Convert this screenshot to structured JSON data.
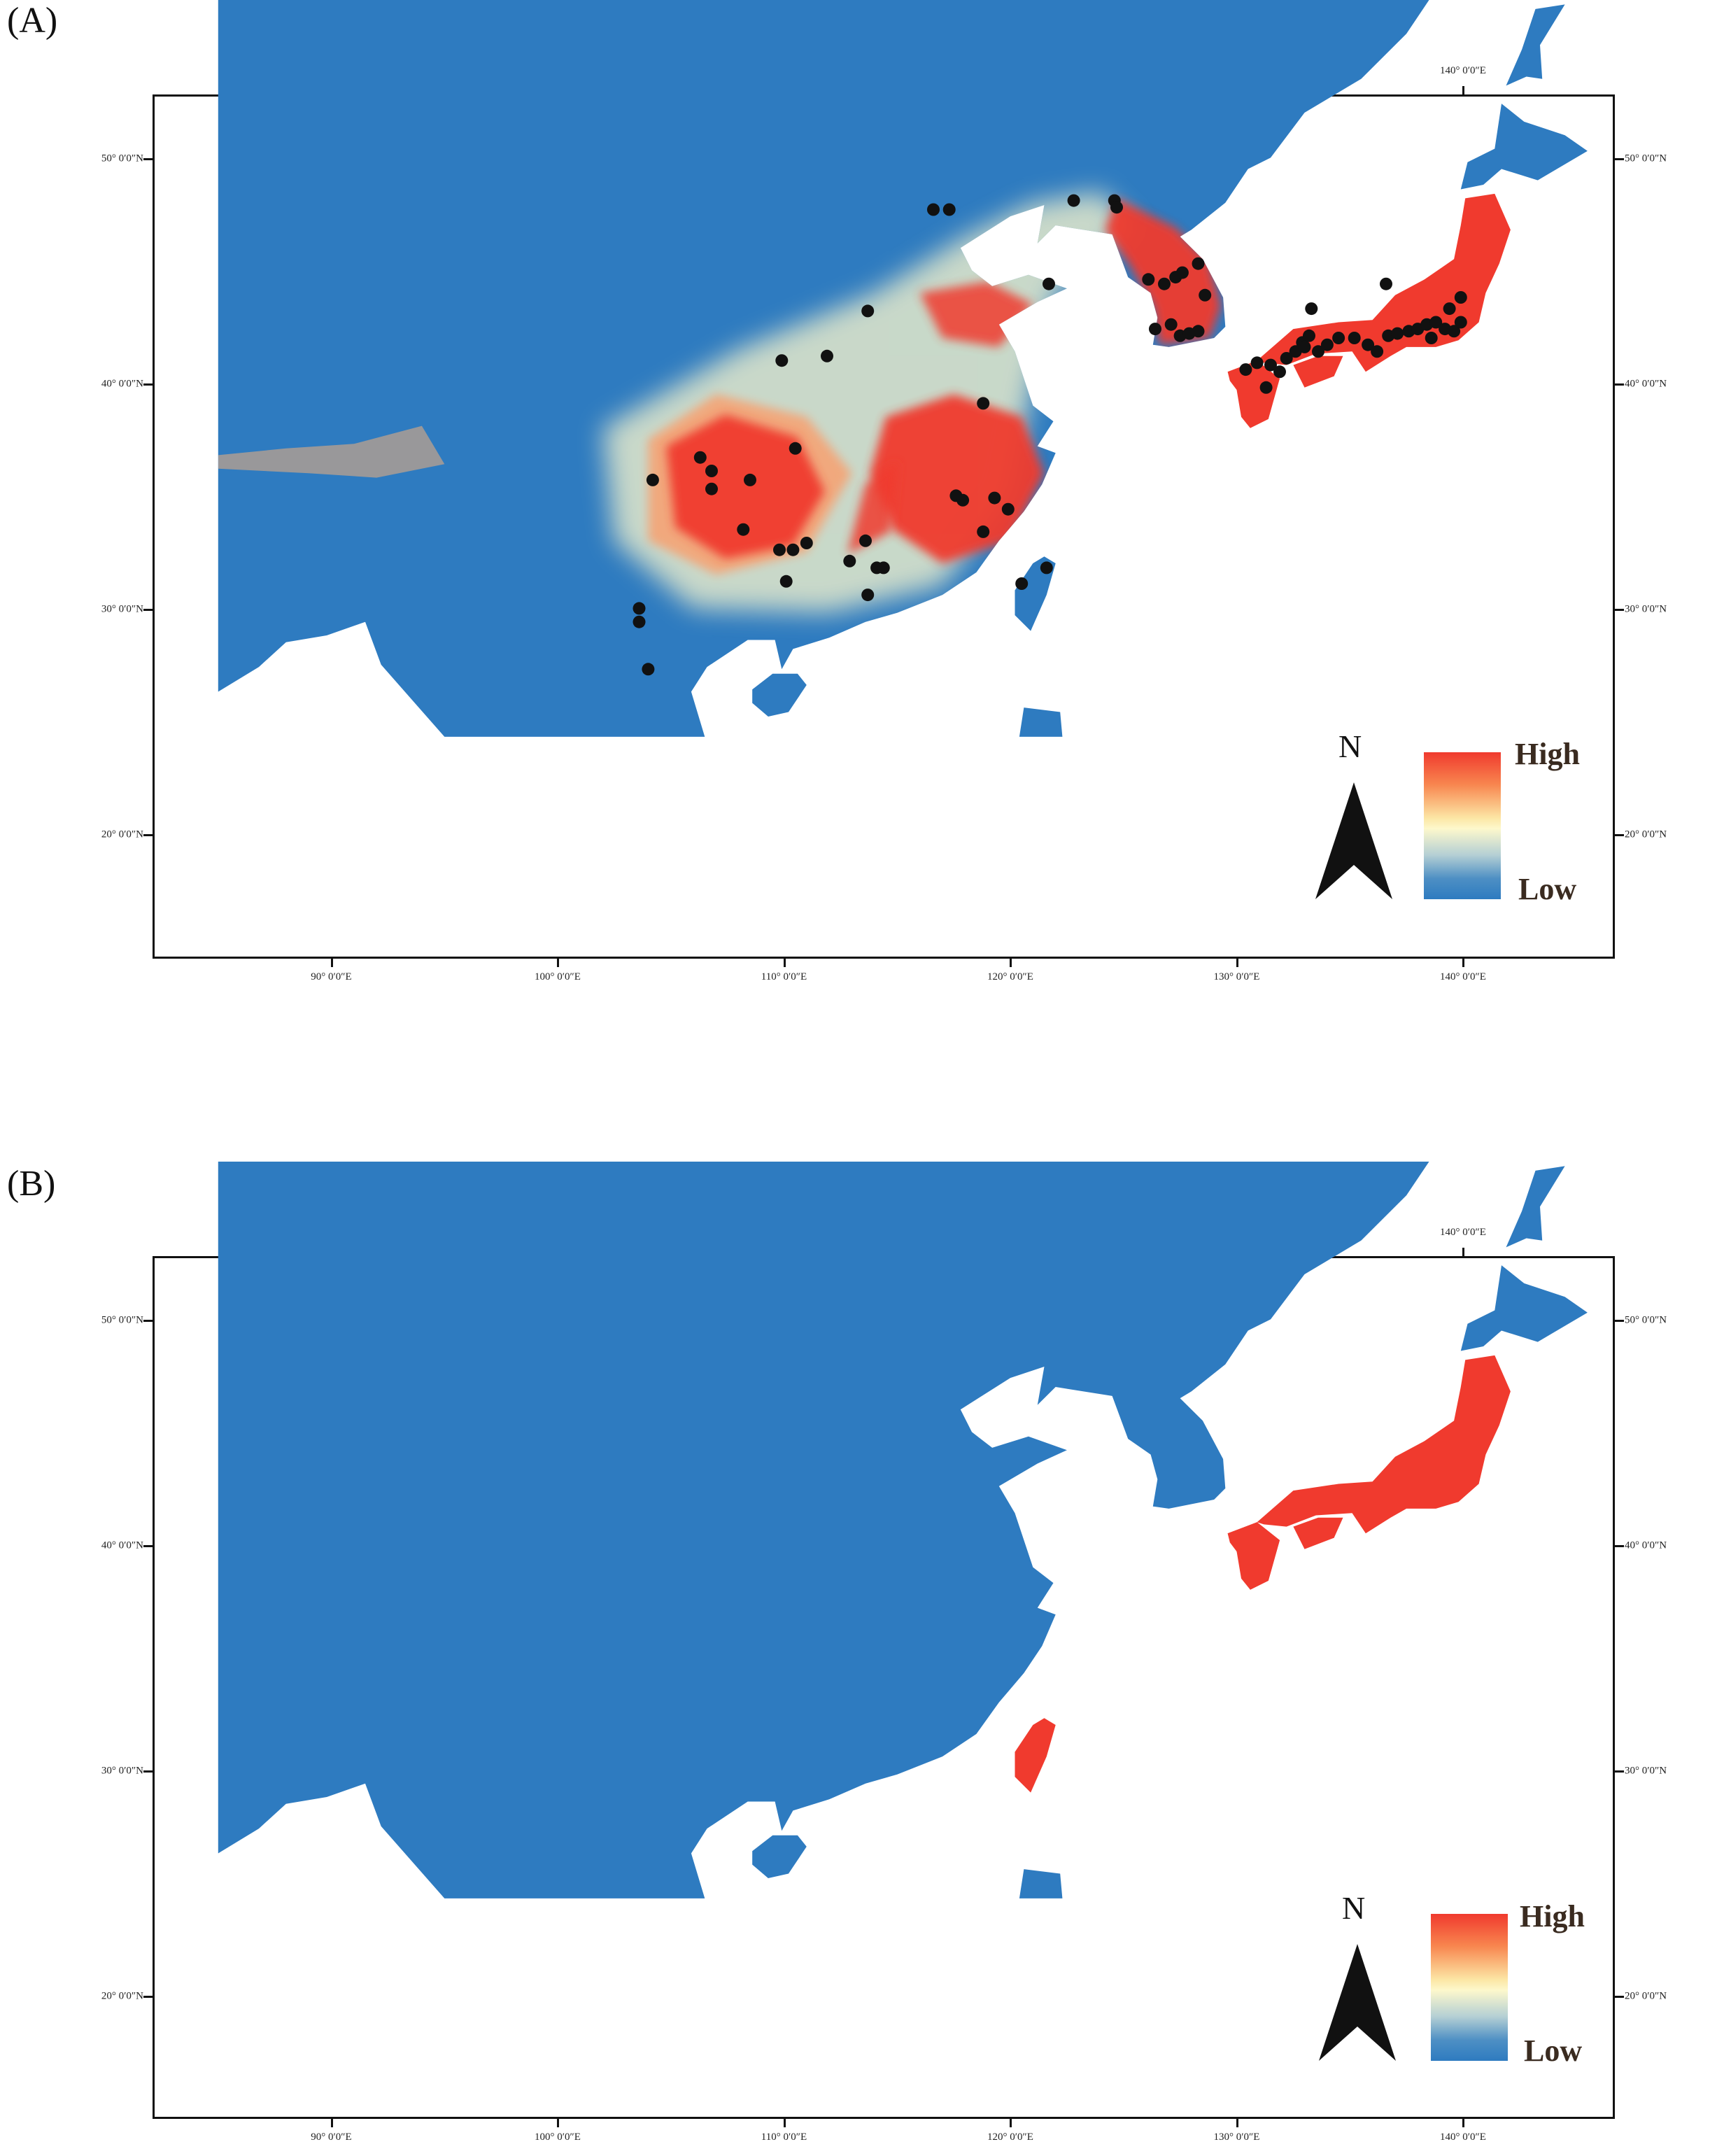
{
  "panels": [
    {
      "label": "(A)",
      "legend_high": "High",
      "legend_low": "Low",
      "north": "N"
    },
    {
      "label": "(B)",
      "legend_high": "High",
      "legend_low": "Low",
      "north": "N"
    }
  ],
  "axes": {
    "lon_labels": [
      "90° 0′0″E",
      "100° 0′0″E",
      "110° 0′0″E",
      "120° 0′0″E",
      "130° 0′0″E",
      "140° 0′0″E"
    ],
    "lat_labels": [
      "50° 0′0″N",
      "40° 0′0″N",
      "30° 0′0″N",
      "20° 0′0″N"
    ]
  },
  "colors": {
    "low": "#2e7bc0",
    "mid": "#fdf8cc",
    "high": "#f03a2e",
    "occurrence": "#111111"
  },
  "occurrences_panel_a": [
    [
      116.6,
      40.7
    ],
    [
      117.3,
      40.7
    ],
    [
      122.8,
      41.1
    ],
    [
      124.6,
      41.1
    ],
    [
      124.7,
      40.8
    ],
    [
      121.7,
      37.4
    ],
    [
      113.7,
      36.2
    ],
    [
      109.9,
      34.0
    ],
    [
      111.9,
      34.2
    ],
    [
      118.8,
      32.1
    ],
    [
      104.2,
      28.7
    ],
    [
      106.3,
      29.7
    ],
    [
      106.8,
      29.1
    ],
    [
      106.8,
      28.3
    ],
    [
      108.5,
      28.7
    ],
    [
      110.5,
      30.1
    ],
    [
      108.2,
      26.5
    ],
    [
      109.8,
      25.6
    ],
    [
      110.4,
      25.6
    ],
    [
      111.0,
      25.9
    ],
    [
      110.1,
      24.2
    ],
    [
      113.6,
      26.0
    ],
    [
      112.9,
      25.1
    ],
    [
      114.1,
      24.8
    ],
    [
      114.4,
      24.8
    ],
    [
      113.7,
      23.6
    ],
    [
      117.6,
      28.0
    ],
    [
      117.9,
      27.8
    ],
    [
      119.3,
      27.9
    ],
    [
      119.9,
      27.4
    ],
    [
      118.8,
      26.4
    ],
    [
      120.5,
      24.1
    ],
    [
      121.6,
      24.8
    ],
    [
      103.6,
      23.0
    ],
    [
      103.6,
      22.4
    ],
    [
      104.0,
      20.3
    ],
    [
      126.1,
      37.6
    ],
    [
      126.8,
      37.4
    ],
    [
      127.3,
      37.7
    ],
    [
      127.6,
      37.9
    ],
    [
      128.3,
      38.3
    ],
    [
      128.6,
      36.9
    ],
    [
      126.4,
      35.4
    ],
    [
      127.1,
      35.6
    ],
    [
      127.5,
      35.1
    ],
    [
      127.9,
      35.2
    ],
    [
      128.3,
      35.3
    ],
    [
      130.4,
      33.6
    ],
    [
      130.9,
      33.9
    ],
    [
      131.5,
      33.8
    ],
    [
      131.3,
      32.8
    ],
    [
      131.9,
      33.5
    ],
    [
      132.2,
      34.1
    ],
    [
      132.6,
      34.4
    ],
    [
      132.9,
      34.8
    ],
    [
      133.2,
      35.1
    ],
    [
      133.3,
      36.3
    ],
    [
      133.0,
      34.6
    ],
    [
      133.6,
      34.4
    ],
    [
      134.0,
      34.7
    ],
    [
      134.5,
      35.0
    ],
    [
      135.2,
      35.0
    ],
    [
      135.8,
      34.7
    ],
    [
      136.2,
      34.4
    ],
    [
      136.7,
      35.1
    ],
    [
      137.1,
      35.2
    ],
    [
      137.6,
      35.3
    ],
    [
      138.0,
      35.4
    ],
    [
      138.4,
      35.6
    ],
    [
      138.8,
      35.7
    ],
    [
      139.2,
      35.4
    ],
    [
      139.6,
      35.3
    ],
    [
      139.9,
      35.7
    ],
    [
      139.4,
      36.3
    ],
    [
      139.9,
      36.8
    ],
    [
      136.6,
      37.4
    ],
    [
      138.6,
      35.0
    ]
  ]
}
